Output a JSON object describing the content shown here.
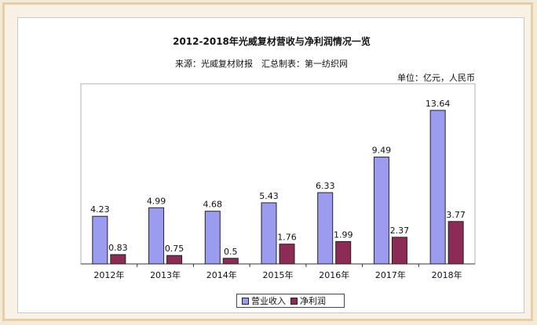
{
  "title": "2012-2018年光威复材营收与净利润情况一览",
  "source": "来源：光威复材财报　汇总制表：第一纺织网",
  "unit": "单位：亿元，人民币",
  "colors": {
    "revenue": "#9b9bf0",
    "profit": "#8c2b55",
    "plot_bg": "#ffffff"
  },
  "chart_data": {
    "type": "bar",
    "title": "2012-2018年光威复材营收与净利润情况一览",
    "categories": [
      "2012年",
      "2013年",
      "2014年",
      "2015年",
      "2016年",
      "2017年",
      "2018年"
    ],
    "series": [
      {
        "name": "营业收入",
        "values": [
          4.23,
          4.99,
          4.68,
          5.43,
          6.33,
          9.49,
          13.64
        ],
        "labels": [
          "4.23",
          "4.99",
          "4.68",
          "5.43",
          "6.33",
          "9.49",
          "13.64"
        ]
      },
      {
        "name": "净利润",
        "values": [
          0.83,
          0.75,
          0.5,
          1.76,
          1.99,
          2.37,
          3.77
        ],
        "labels": [
          "0.83",
          "0.75",
          "0.5",
          "1.76",
          "1.99",
          "2.37",
          "3.77"
        ]
      }
    ],
    "ylim": [
      0,
      16
    ],
    "xlabel": "",
    "ylabel": "",
    "legend": "bottom-center",
    "grid": false
  }
}
